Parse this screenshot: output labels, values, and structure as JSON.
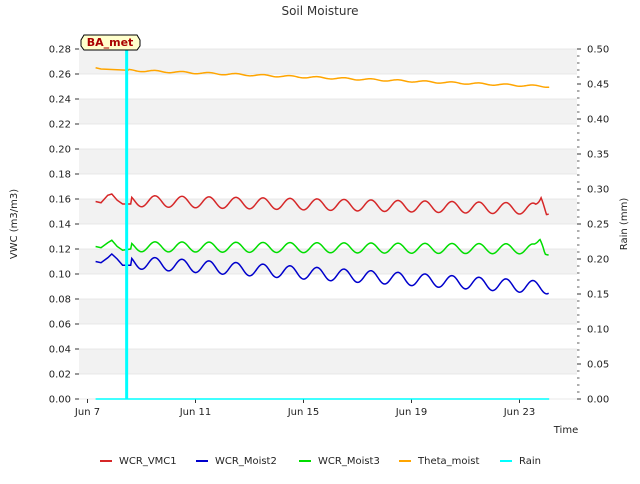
{
  "chart_data": {
    "type": "line",
    "title": "Soil Moisture",
    "xlabel": "Time",
    "ylabel": "VWC (m3/m3)",
    "y2label": "Rain (mm)",
    "annotation": "BA_met",
    "xlim": [
      0,
      18
    ],
    "ylim": [
      0,
      0.28
    ],
    "y2lim": [
      0,
      0.5
    ],
    "x_ticks": [
      {
        "x": 0,
        "label": "Jun 7"
      },
      {
        "x": 4,
        "label": "Jun 11"
      },
      {
        "x": 8,
        "label": "Jun 15"
      },
      {
        "x": 12,
        "label": "Jun 19"
      },
      {
        "x": 16,
        "label": "Jun 23"
      }
    ],
    "y_ticks": [
      "0.00",
      "0.02",
      "0.04",
      "0.06",
      "0.08",
      "0.10",
      "0.12",
      "0.14",
      "0.16",
      "0.18",
      "0.20",
      "0.22",
      "0.24",
      "0.26",
      "0.28"
    ],
    "y2_ticks": [
      "0.00",
      "0.05",
      "0.10",
      "0.15",
      "0.20",
      "0.25",
      "0.30",
      "0.35",
      "0.40",
      "0.45",
      "0.50"
    ],
    "x_start": 0.3,
    "x_end": 17.1,
    "series": [
      {
        "name": "WCR_VMC1",
        "color": "#d62728",
        "axis": "left",
        "trend_start": 0.159,
        "trend_end": 0.152,
        "amplitude": 0.0045,
        "shaped": [
          {
            "day": 0.3,
            "value": 0.158
          },
          {
            "day": 0.5,
            "value": 0.157
          },
          {
            "day": 0.75,
            "value": 0.163
          },
          {
            "day": 0.9,
            "value": 0.164
          },
          {
            "day": 1.1,
            "value": 0.159
          },
          {
            "day": 1.3,
            "value": 0.156
          },
          {
            "day": 1.6,
            "value": 0.156
          }
        ],
        "spikes": [
          {
            "day": 16.8,
            "value": 0.161
          }
        ]
      },
      {
        "name": "WCR_Moist2",
        "color": "#0000cc",
        "axis": "left",
        "trend_start": 0.111,
        "trend_end": 0.089,
        "amplitude": 0.005,
        "shaped": [
          {
            "day": 0.3,
            "value": 0.11
          },
          {
            "day": 0.5,
            "value": 0.109
          },
          {
            "day": 0.75,
            "value": 0.113
          },
          {
            "day": 0.9,
            "value": 0.116
          },
          {
            "day": 1.1,
            "value": 0.112
          },
          {
            "day": 1.3,
            "value": 0.107
          },
          {
            "day": 1.6,
            "value": 0.107
          }
        ],
        "spikes": []
      },
      {
        "name": "WCR_Moist3",
        "color": "#00dd00",
        "axis": "left",
        "trend_start": 0.122,
        "trend_end": 0.12,
        "amplitude": 0.004,
        "shaped": [
          {
            "day": 0.3,
            "value": 0.122
          },
          {
            "day": 0.5,
            "value": 0.121
          },
          {
            "day": 0.75,
            "value": 0.125
          },
          {
            "day": 0.9,
            "value": 0.127
          },
          {
            "day": 1.1,
            "value": 0.122
          },
          {
            "day": 1.3,
            "value": 0.119
          },
          {
            "day": 1.6,
            "value": 0.12
          }
        ],
        "spikes": [
          {
            "day": 16.75,
            "value": 0.128
          },
          {
            "day": 17.1,
            "value": 0.115
          }
        ]
      },
      {
        "name": "Theta_moist",
        "color": "#ffa500",
        "axis": "left",
        "trend_start": 0.264,
        "trend_end": 0.25,
        "amplitude": 0.0007,
        "shaped": [
          {
            "day": 0.3,
            "value": 0.265
          },
          {
            "day": 0.5,
            "value": 0.264
          },
          {
            "day": 1.5,
            "value": 0.263
          }
        ],
        "spikes": []
      },
      {
        "name": "Rain",
        "color": "#00ffff",
        "axis": "right",
        "baseline": 0.0,
        "events": [
          {
            "day": 1.45,
            "value": 0.5
          }
        ]
      }
    ]
  }
}
